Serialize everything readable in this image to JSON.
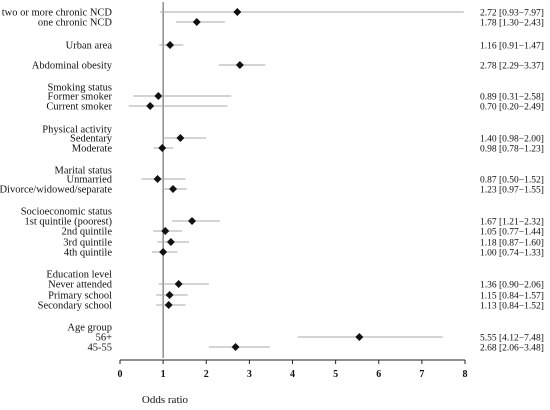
{
  "chart_data": {
    "type": "forest",
    "xlabel": "Odds ratio",
    "xlim": [
      0,
      8
    ],
    "xticks": [
      "0",
      "1",
      "2",
      "3",
      "4",
      "5",
      "6",
      "7",
      "8"
    ],
    "reference_line": 1,
    "grid": false,
    "rows": [
      {
        "label": "two or more chronic NCD",
        "or": 2.72,
        "lo": 0.93,
        "hi": 7.97,
        "text": "2.72 [0.93−7.97]"
      },
      {
        "label": "one chronic NCD",
        "or": 1.78,
        "lo": 1.3,
        "hi": 2.43,
        "text": "1.78 [1.30−2.43]"
      },
      {
        "label": "Urban area",
        "or": 1.16,
        "lo": 0.91,
        "hi": 1.47,
        "text": "1.16 [0.91−1.47]"
      },
      {
        "label": "Abdominal obesity",
        "or": 2.78,
        "lo": 2.29,
        "hi": 3.37,
        "text": "2.78 [2.29−3.37]"
      },
      {
        "label": "Smoking status",
        "header": true
      },
      {
        "label": "Former smoker",
        "or": 0.89,
        "lo": 0.31,
        "hi": 2.58,
        "text": "0.89 [0.31−2.58]"
      },
      {
        "label": "Current smoker",
        "or": 0.7,
        "lo": 0.2,
        "hi": 2.49,
        "text": "0.70 [0.20−2.49]"
      },
      {
        "label": "Physical activity",
        "header": true
      },
      {
        "label": "Sedentary",
        "or": 1.4,
        "lo": 0.98,
        "hi": 2.0,
        "text": "1.40 [0.98−2.00]"
      },
      {
        "label": "Moderate",
        "or": 0.98,
        "lo": 0.78,
        "hi": 1.23,
        "text": "0.98 [0.78−1.23]"
      },
      {
        "label": "Marital status",
        "header": true
      },
      {
        "label": "Unmarried",
        "or": 0.87,
        "lo": 0.5,
        "hi": 1.52,
        "text": "0.87 [0.50−1.52]"
      },
      {
        "label": "Divorce/widowed/separate",
        "or": 1.23,
        "lo": 0.97,
        "hi": 1.55,
        "text": "1.23 [0.97−1.55]"
      },
      {
        "label": "Socioeconomic status",
        "header": true
      },
      {
        "label": "1st quintile (poorest)",
        "or": 1.67,
        "lo": 1.21,
        "hi": 2.32,
        "text": "1.67 [1.21−2.32]"
      },
      {
        "label": "2nd quintile",
        "or": 1.05,
        "lo": 0.77,
        "hi": 1.44,
        "text": "1.05 [0.77−1.44]"
      },
      {
        "label": "3rd quintile",
        "or": 1.18,
        "lo": 0.87,
        "hi": 1.6,
        "text": "1.18 [0.87−1.60]"
      },
      {
        "label": "4th quintile",
        "or": 1.0,
        "lo": 0.74,
        "hi": 1.33,
        "text": "1.00 [0.74−1.33]"
      },
      {
        "label": "Education level",
        "header": true
      },
      {
        "label": "Never attended",
        "or": 1.36,
        "lo": 0.9,
        "hi": 2.06,
        "text": "1.36 [0.90−2.06]"
      },
      {
        "label": "Primary school",
        "or": 1.15,
        "lo": 0.84,
        "hi": 1.57,
        "text": "1.15 [0.84−1.57]"
      },
      {
        "label": "Secondary school",
        "or": 1.13,
        "lo": 0.84,
        "hi": 1.52,
        "text": "1.13 [0.84−1.52]"
      },
      {
        "label": "Age group",
        "header": true
      },
      {
        "label": "56+",
        "or": 5.55,
        "lo": 4.12,
        "hi": 7.48,
        "text": "5.55 [4.12−7.48]"
      },
      {
        "label": "45-55",
        "or": 2.68,
        "lo": 2.06,
        "hi": 3.48,
        "text": "2.68 [2.06−3.48]"
      }
    ]
  }
}
